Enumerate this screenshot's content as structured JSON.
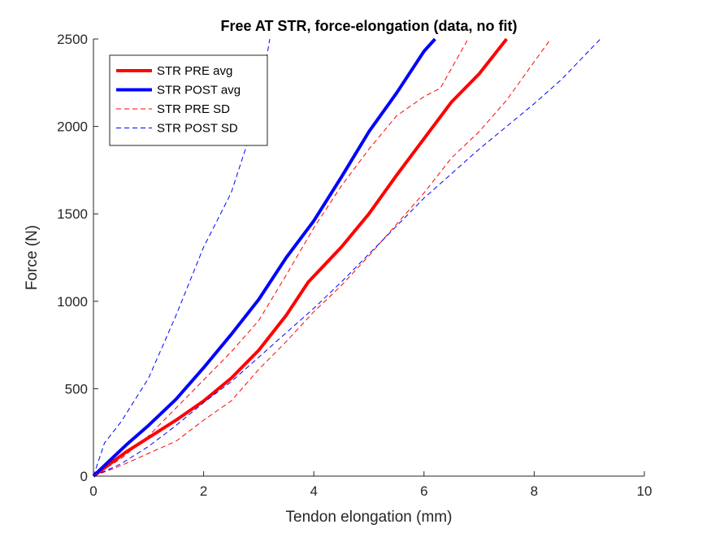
{
  "chart_data": {
    "type": "line",
    "title": "Free AT STR, force-elongation (data, no fit)",
    "xlabel": "Tendon elongation (mm)",
    "ylabel": "Force (N)",
    "xlim": [
      0,
      10
    ],
    "ylim": [
      0,
      2500
    ],
    "xticks": [
      "0",
      "2",
      "4",
      "6",
      "8",
      "10"
    ],
    "yticks": [
      "0",
      "500",
      "1000",
      "1500",
      "2000",
      "2500"
    ],
    "grid": false,
    "legend_position": "top-left",
    "series": [
      {
        "name": "STR PRE avg",
        "color": "#ff0000",
        "style": "solid",
        "x": [
          0,
          0.3,
          0.6,
          1.0,
          1.5,
          2.0,
          2.5,
          3.0,
          3.5,
          3.9,
          4.5,
          5.0,
          5.5,
          6.0,
          6.5,
          7.0,
          7.5
        ],
        "y": [
          0,
          70,
          140,
          220,
          320,
          430,
          560,
          720,
          920,
          1110,
          1310,
          1500,
          1720,
          1930,
          2140,
          2300,
          2500
        ]
      },
      {
        "name": "STR POST avg",
        "color": "#0000ff",
        "style": "solid",
        "x": [
          0,
          0.3,
          0.6,
          1.0,
          1.5,
          2.0,
          2.5,
          3.0,
          3.5,
          4.0,
          4.5,
          5.0,
          5.5,
          6.0,
          6.2
        ],
        "y": [
          0,
          90,
          180,
          290,
          440,
          620,
          810,
          1010,
          1250,
          1460,
          1710,
          1970,
          2190,
          2430,
          2500
        ]
      },
      {
        "name": "STR PRE SD",
        "color": "#ff0000",
        "style": "dashed",
        "x": [
          0,
          0.5,
          1.0,
          1.5,
          2.0,
          2.5,
          3.0,
          3.5,
          4.0,
          4.5,
          5.0,
          5.5,
          6.0,
          6.3,
          6.8
        ],
        "y": [
          0,
          100,
          230,
          390,
          550,
          710,
          890,
          1150,
          1420,
          1660,
          1870,
          2060,
          2170,
          2220,
          2500
        ]
      },
      {
        "name": "STR PRE SD",
        "color": "#ff0000",
        "style": "dashed",
        "x": [
          0,
          0.5,
          1.0,
          1.5,
          2.0,
          2.5,
          3.0,
          3.5,
          4.0,
          4.5,
          5.0,
          5.5,
          6.0,
          6.5,
          7.0,
          7.5,
          8.0,
          8.3
        ],
        "y": [
          0,
          60,
          130,
          200,
          320,
          430,
          610,
          770,
          940,
          1090,
          1260,
          1440,
          1620,
          1820,
          1970,
          2150,
          2370,
          2500
        ]
      },
      {
        "name": "STR POST SD",
        "color": "#0000ff",
        "style": "dashed",
        "x": [
          0,
          0.2,
          0.5,
          1.0,
          1.5,
          2.0,
          2.5,
          2.8,
          3.0,
          3.2
        ],
        "y": [
          0,
          190,
          310,
          560,
          920,
          1310,
          1620,
          1910,
          2130,
          2500
        ]
      },
      {
        "name": "STR POST SD",
        "color": "#0000ff",
        "style": "dashed",
        "x": [
          0,
          0.5,
          1.0,
          1.5,
          2.0,
          2.5,
          3.0,
          3.5,
          4.0,
          4.5,
          5.0,
          5.5,
          6.0,
          6.5,
          7.0,
          7.5,
          8.0,
          8.5,
          9.2
        ],
        "y": [
          0,
          70,
          170,
          290,
          420,
          540,
          680,
          820,
          960,
          1110,
          1270,
          1430,
          1590,
          1730,
          1870,
          2000,
          2130,
          2270,
          2500
        ]
      }
    ],
    "legend": [
      {
        "label": "STR PRE avg",
        "color": "#ff0000",
        "style": "solid"
      },
      {
        "label": "STR POST avg",
        "color": "#0000ff",
        "style": "solid"
      },
      {
        "label": "STR PRE SD",
        "color": "#ff0000",
        "style": "dashed"
      },
      {
        "label": "STR POST SD",
        "color": "#0000ff",
        "style": "dashed"
      }
    ]
  }
}
